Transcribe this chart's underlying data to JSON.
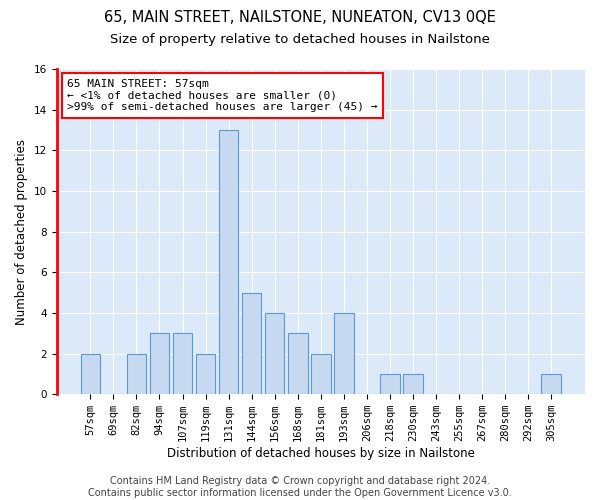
{
  "title": "65, MAIN STREET, NAILSTONE, NUNEATON, CV13 0QE",
  "subtitle": "Size of property relative to detached houses in Nailstone",
  "xlabel": "Distribution of detached houses by size in Nailstone",
  "ylabel": "Number of detached properties",
  "categories": [
    "57sqm",
    "69sqm",
    "82sqm",
    "94sqm",
    "107sqm",
    "119sqm",
    "131sqm",
    "144sqm",
    "156sqm",
    "168sqm",
    "181sqm",
    "193sqm",
    "206sqm",
    "218sqm",
    "230sqm",
    "243sqm",
    "255sqm",
    "267sqm",
    "280sqm",
    "292sqm",
    "305sqm"
  ],
  "values": [
    2,
    0,
    2,
    3,
    3,
    2,
    13,
    5,
    4,
    3,
    2,
    4,
    0,
    1,
    1,
    0,
    0,
    0,
    0,
    0,
    1
  ],
  "bar_color": "#c7d9f0",
  "bar_edge_color": "#5b9bd5",
  "annotation_text": "65 MAIN STREET: 57sqm\n← <1% of detached houses are smaller (0)\n>99% of semi-detached houses are larger (45) →",
  "annotation_box_edge_color": "red",
  "annotation_box_face_color": "white",
  "ylim": [
    0,
    16
  ],
  "yticks": [
    0,
    2,
    4,
    6,
    8,
    10,
    12,
    14,
    16
  ],
  "background_color": "#dce9f8",
  "grid_color": "white",
  "footer_text": "Contains HM Land Registry data © Crown copyright and database right 2024.\nContains public sector information licensed under the Open Government Licence v3.0.",
  "title_fontsize": 10.5,
  "subtitle_fontsize": 9.5,
  "axis_label_fontsize": 8.5,
  "tick_fontsize": 7.5,
  "annotation_fontsize": 8,
  "footer_fontsize": 7
}
